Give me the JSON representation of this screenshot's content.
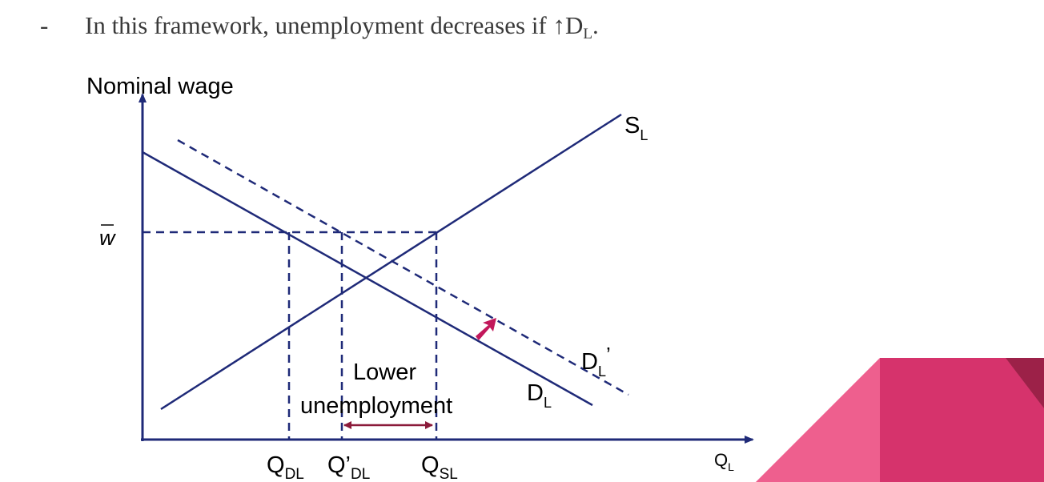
{
  "bullet": {
    "dash": "-",
    "text_prefix": "In this framework, unemployment decreases if ↑D",
    "text_sub": "L",
    "text_suffix": "."
  },
  "diagram": {
    "y_axis_label": "Nominal wage",
    "x_axis_label": {
      "main": "Q",
      "sub": "L"
    },
    "wage_label": "w̄",
    "supply_label": {
      "main": "S",
      "sub": "L"
    },
    "demand_label": {
      "main": "D",
      "sub": "L"
    },
    "new_demand_label": {
      "main": "D",
      "sub": "L",
      "suffix": "’"
    },
    "q_labels": [
      {
        "main": "Q",
        "sub": "DL"
      },
      {
        "main": "Q’",
        "sub": "DL"
      },
      {
        "main": "Q",
        "sub": "SL"
      }
    ],
    "annotation_line1": "Lower",
    "annotation_line2": "unemployment",
    "colors": {
      "curve": "#1f2a78",
      "shift_arrow": "#c2185b",
      "range_arrow": "#8b1a3a",
      "deco_light": "#ee5f8e",
      "deco_mid": "#d6336c",
      "deco_dark": "#9c2148"
    }
  }
}
